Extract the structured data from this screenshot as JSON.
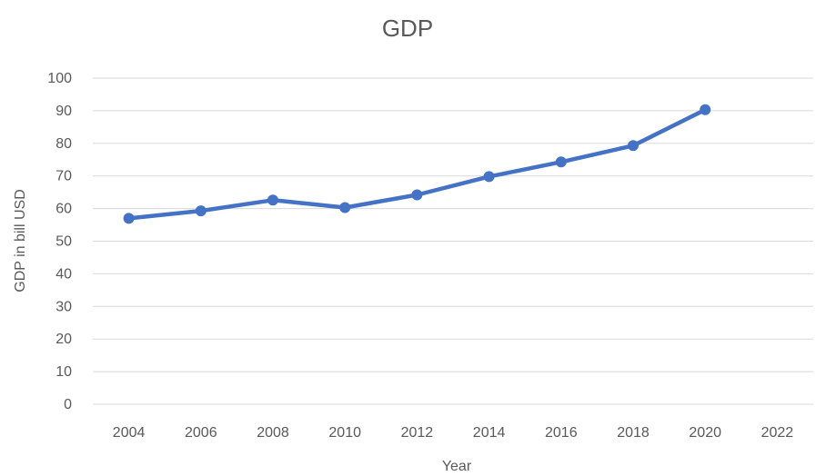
{
  "chart_data": {
    "type": "line",
    "title": "GDP",
    "xlabel": "Year",
    "ylabel": "GDP in bill USD",
    "categories": [
      "2004",
      "2006",
      "2008",
      "2010",
      "2012",
      "2014",
      "2016",
      "2018",
      "2020",
      "2022"
    ],
    "series": [
      {
        "values": [
          57,
          59.3,
          62.6,
          60.3,
          64.2,
          69.8,
          74.3,
          79.3,
          90.3,
          null
        ]
      }
    ],
    "ylim": [
      0,
      100
    ],
    "yticks": [
      0,
      10,
      20,
      30,
      40,
      50,
      60,
      70,
      80,
      90,
      100
    ],
    "grid": true,
    "legend": "none",
    "colors": {
      "series": "#4472c4",
      "grid": "#d9d9d9",
      "text": "#595959"
    }
  }
}
